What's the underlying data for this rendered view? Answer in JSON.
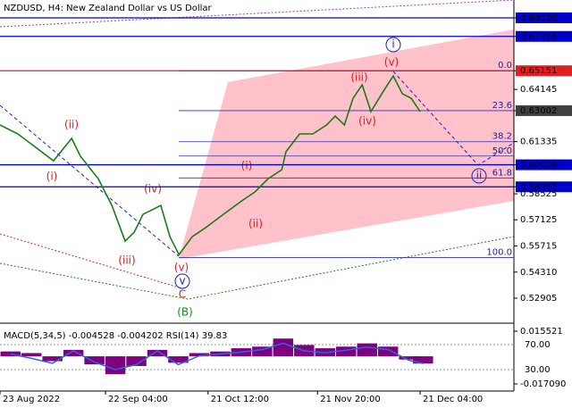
{
  "chart_data": [
    {
      "type": "line",
      "title": "NZDUSD, H4:  New Zealand Dollar vs US Dollar",
      "x": [
        0,
        5.1,
        10.2,
        15.3,
        20.5,
        23,
        28.1,
        32,
        35.8,
        38.4,
        40.9,
        43.5,
        46,
        48.6,
        51.2,
        55,
        58.8,
        63.9,
        69.1,
        72.9,
        76.7,
        80.6,
        81.8,
        85.7,
        89.5,
        93.4,
        95.9,
        98.5,
        101,
        103.6,
        106.1,
        110,
        112.5,
        115.1,
        117.6,
        120.2
      ],
      "series": [
        {
          "name": "NZDUSD",
          "color": "#1a7a1a",
          "values": [
            0.6223,
            0.6175,
            0.6103,
            0.603,
            0.6151,
            0.6055,
            0.5934,
            0.579,
            0.5598,
            0.5646,
            0.5742,
            0.5766,
            0.579,
            0.5622,
            0.5525,
            0.5622,
            0.567,
            0.5742,
            0.5814,
            0.5862,
            0.5934,
            0.5982,
            0.6079,
            0.6175,
            0.6175,
            0.6223,
            0.6271,
            0.6223,
            0.6367,
            0.6439,
            0.6295,
            0.6415,
            0.6487,
            0.6391,
            0.6367,
            0.6295
          ]
        }
      ],
      "xlim": [
        0,
        147
      ],
      "xticks": [
        {
          "value": 0,
          "label": "23 Aug 2022"
        },
        {
          "value": 30.17,
          "label": "22 Sep 04:00"
        },
        {
          "value": 59.5,
          "label": "21 Oct 12:00"
        },
        {
          "value": 90.83,
          "label": "21 Nov 20:00"
        },
        {
          "value": 120.17,
          "label": "21 Dec 04:00"
        }
      ],
      "ylim": [
        0.5156,
        0.6896
      ],
      "yticks": [
        {
          "value": 0.68,
          "label": "0.68000"
        },
        {
          "value": 0.67,
          "label": "0.67000"
        },
        0.65151,
        0.64145,
        0.63002,
        0.61335,
        0.60089,
        0.58902,
        0.58525,
        0.57125,
        0.55715,
        {
          "value": 0.5431,
          "label": "0.54310"
        },
        0.52905
      ],
      "levels": [
        {
          "value": 0.68,
          "color": "#0000cc"
        },
        {
          "value": 0.67,
          "color": "#0000cc"
        },
        {
          "value": 0.65151,
          "color": "#e02020"
        },
        {
          "value": 0.60089,
          "color": "#0000cc"
        },
        {
          "value": 0.58902,
          "color": "#0000cc"
        }
      ],
      "fib_levels": [
        {
          "label": "0.0",
          "value": 0.65151
        },
        {
          "label": "23.6",
          "value": 0.63002
        },
        {
          "label": "38.2",
          "value": 0.6133
        },
        {
          "label": "50.0",
          "value": 0.6056
        },
        {
          "label": "61.8",
          "value": 0.5938
        },
        {
          "label": "100.0",
          "value": 0.5509
        }
      ],
      "annotations": [
        "(i)",
        "(ii)",
        "(iii)",
        "(iv)",
        "(v)",
        "v",
        "C",
        "(B)",
        "(i)",
        "(ii)",
        "(iii)",
        "(iv)",
        "(v)",
        "i",
        "ii"
      ]
    },
    {
      "type": "bar",
      "title": "MACD(5,34,5) -0.004528 -0.004202 RSI(14) 39.83",
      "x": [
        3,
        9,
        15,
        21,
        27,
        33,
        39,
        45,
        51,
        57,
        63,
        69,
        75,
        81,
        87,
        93,
        99,
        105,
        111,
        117,
        121
      ],
      "series": [
        {
          "name": "MACD",
          "color": "#800080",
          "values": [
            0.003,
            0.002,
            -0.003,
            0.004,
            -0.005,
            -0.011,
            -0.006,
            0.004,
            -0.004,
            0.002,
            0.003,
            0.005,
            0.006,
            0.011,
            0.007,
            0.005,
            0.006,
            0.008,
            0.006,
            -0.002,
            -0.0045
          ]
        },
        {
          "name": "RSI",
          "color": "#1e6ee0",
          "axis": "y2",
          "values": [
            55,
            48,
            40,
            60,
            42,
            30,
            38,
            60,
            38,
            52,
            55,
            58,
            62,
            72,
            60,
            57,
            61,
            66,
            62,
            45,
            39.83
          ]
        }
      ],
      "ylim": [
        -0.0215,
        0.0194
      ],
      "yticks": [
        0.015521,
        {
          "value": -0.01709,
          "label": "-0.017090"
        }
      ],
      "y2lim": [
        -4.3,
        101.4
      ],
      "y2ticks": [
        {
          "value": 70,
          "label": "70.00"
        },
        {
          "value": 30,
          "label": "30.00"
        }
      ]
    }
  ]
}
